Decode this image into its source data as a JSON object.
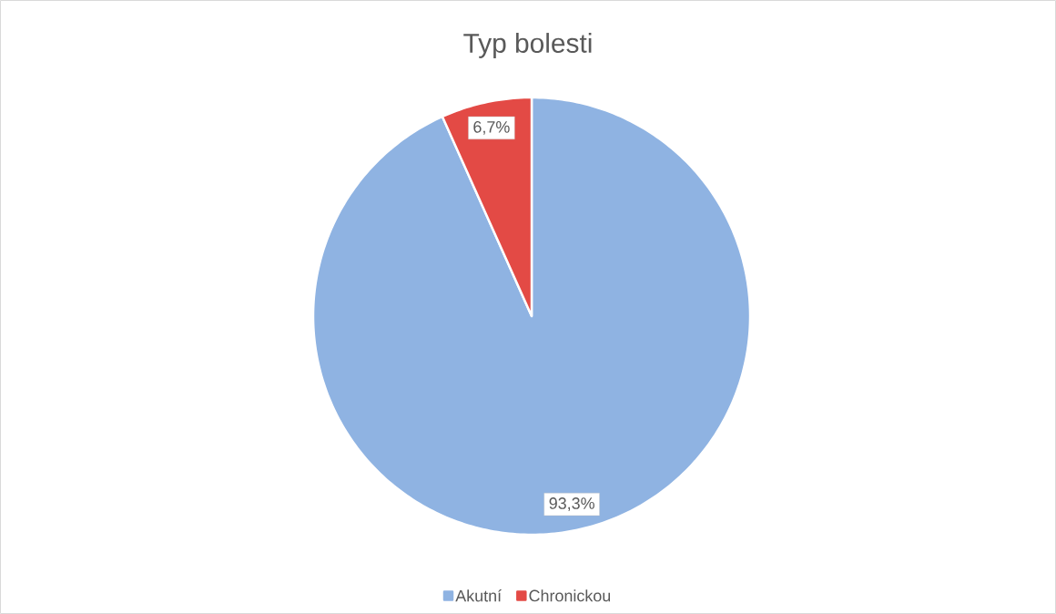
{
  "chart_data": {
    "type": "pie",
    "title": "Typ bolesti",
    "categories": [
      "Akutní",
      "Chronickou"
    ],
    "values": [
      93.3,
      6.7
    ],
    "colors": [
      "#8fb3e2",
      "#e34a45"
    ],
    "value_labels": [
      "93,3%",
      "6,7%"
    ],
    "legend": "bottom"
  }
}
